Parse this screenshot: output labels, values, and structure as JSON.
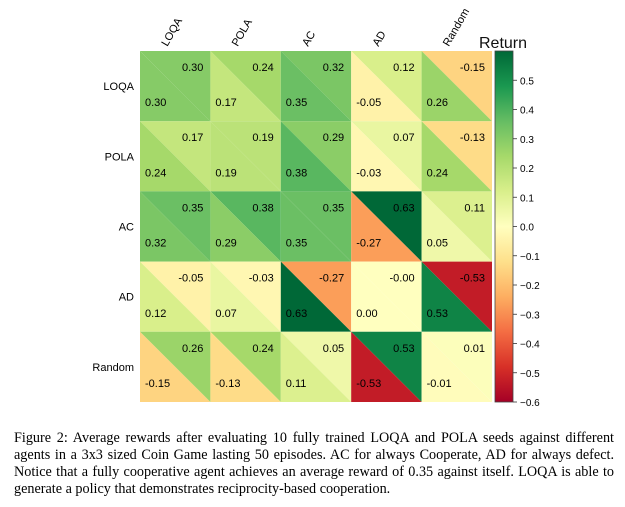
{
  "chart_data": {
    "type": "heatmap",
    "layout": "split-cell",
    "rows": [
      "LOQA",
      "POLA",
      "AC",
      "AD",
      "Random"
    ],
    "columns": [
      "LOQA",
      "POLA",
      "AC",
      "AD",
      "Random"
    ],
    "upper_right_values": [
      [
        0.3,
        0.24,
        0.32,
        0.12,
        -0.15
      ],
      [
        0.17,
        0.19,
        0.29,
        0.07,
        -0.13
      ],
      [
        0.35,
        0.38,
        0.35,
        0.63,
        0.11
      ],
      [
        -0.05,
        -0.03,
        -0.27,
        -0.0,
        -0.53
      ],
      [
        0.26,
        0.24,
        0.05,
        0.53,
        0.01
      ]
    ],
    "upper_right_labels": [
      [
        "0.30",
        "0.24",
        "0.32",
        "0.12",
        "-0.15"
      ],
      [
        "0.17",
        "0.19",
        "0.29",
        "0.07",
        "-0.13"
      ],
      [
        "0.35",
        "0.38",
        "0.35",
        "0.63",
        "0.11"
      ],
      [
        "-0.05",
        "-0.03",
        "-0.27",
        "-0.00",
        "-0.53"
      ],
      [
        "0.26",
        "0.24",
        "0.05",
        "0.53",
        "0.01"
      ]
    ],
    "lower_left_values": [
      [
        0.3,
        0.17,
        0.35,
        -0.05,
        0.26
      ],
      [
        0.24,
        0.19,
        0.38,
        -0.03,
        0.24
      ],
      [
        0.32,
        0.29,
        0.35,
        -0.27,
        0.05
      ],
      [
        0.12,
        0.07,
        0.63,
        0.0,
        0.53
      ],
      [
        -0.15,
        -0.13,
        0.11,
        -0.53,
        -0.01
      ]
    ],
    "lower_left_labels": [
      [
        "0.30",
        "0.17",
        "0.35",
        "-0.05",
        "0.26"
      ],
      [
        "0.24",
        "0.19",
        "0.38",
        "-0.03",
        "0.24"
      ],
      [
        "0.32",
        "0.29",
        "0.35",
        "-0.27",
        "0.05"
      ],
      [
        "0.12",
        "0.07",
        "0.63",
        "0.00",
        "0.53"
      ],
      [
        "-0.15",
        "-0.13",
        "0.11",
        "-0.53",
        "-0.01"
      ]
    ],
    "colorbar": {
      "title": "Return",
      "range": [
        -0.6,
        0.6
      ],
      "ticks": [
        0.5,
        0.4,
        0.3,
        0.2,
        0.1,
        0.0,
        -0.1,
        -0.2,
        -0.3,
        -0.4,
        -0.5,
        -0.6
      ],
      "tick_labels": [
        "0.5",
        "0.4",
        "0.3",
        "0.2",
        "0.1",
        "0.0",
        "−0.1",
        "−0.2",
        "−0.3",
        "−0.4",
        "−0.5",
        "−0.6"
      ]
    },
    "colormap": "RdYlGn",
    "colormap_stops": [
      "#a50026",
      "#d73027",
      "#f46d43",
      "#fdae61",
      "#fee08b",
      "#ffffbf",
      "#d9ef8b",
      "#a6d96a",
      "#66bd63",
      "#1a9850",
      "#006837"
    ]
  },
  "caption": "Figure 2: Average rewards after evaluating 10 fully trained LOQA and POLA seeds against different agents in a 3x3 sized Coin Game lasting 50 episodes. AC for always Cooperate, AD for always defect. Notice that a fully cooperative agent achieves an average reward of 0.35 against itself. LOQA is able to generate a policy that demonstrates reciprocity-based cooperation."
}
